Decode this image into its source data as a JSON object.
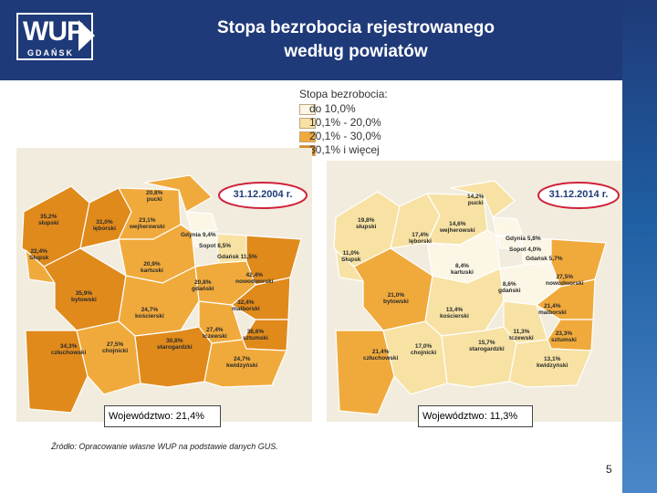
{
  "header": {
    "logo_text": "WUP",
    "logo_subtext": "GDAŃSK",
    "title_line1": "Stopa bezrobocia rejestrowanego",
    "title_line2": "według powiatów"
  },
  "legend": {
    "title": "Stopa bezrobocia:",
    "items": [
      {
        "label": "do 10,0%",
        "color": "#fbf6e6"
      },
      {
        "label": "10,1% - 20,0%",
        "color": "#f7e2a4"
      },
      {
        "label": "20,1% - 30,0%",
        "color": "#f0aa3c"
      },
      {
        "label": "30,1% i więcej",
        "color": "#e08a1c"
      }
    ]
  },
  "maps": [
    {
      "date": "31.12.2004 r.",
      "voivodeship_label": "Województwo: 21,4%",
      "regions": [
        {
          "name": "pucki",
          "value": "20,8%",
          "fill": "#f0aa3c"
        },
        {
          "name": "słupski",
          "value": "35,2%",
          "fill": "#e08a1c"
        },
        {
          "name": "lęborski",
          "value": "31,0%",
          "fill": "#e08a1c"
        },
        {
          "name": "wejherowski",
          "value": "23,1%",
          "fill": "#f0aa3c"
        },
        {
          "name": "Gdynia",
          "value": "9,4%",
          "fill": "#fbf6e6"
        },
        {
          "name": "Sopot",
          "value": "8,5%",
          "fill": "#fbf6e6"
        },
        {
          "name": "Słupsk",
          "value": "22,4%",
          "fill": "#f0aa3c"
        },
        {
          "name": "Gdańsk",
          "value": "11,5%",
          "fill": "#f7e2a4"
        },
        {
          "name": "kartuski",
          "value": "20,9%",
          "fill": "#f0aa3c"
        },
        {
          "name": "nowodworski",
          "value": "42,4%",
          "fill": "#e08a1c"
        },
        {
          "name": "bytowski",
          "value": "35,9%",
          "fill": "#e08a1c"
        },
        {
          "name": "gdański",
          "value": "20,8%",
          "fill": "#f0aa3c"
        },
        {
          "name": "malborski",
          "value": "32,4%",
          "fill": "#e08a1c"
        },
        {
          "name": "kościerski",
          "value": "24,7%",
          "fill": "#f0aa3c"
        },
        {
          "name": "tczewski",
          "value": "27,4%",
          "fill": "#f0aa3c"
        },
        {
          "name": "sztumski",
          "value": "38,6%",
          "fill": "#e08a1c"
        },
        {
          "name": "człuchowski",
          "value": "34,3%",
          "fill": "#e08a1c"
        },
        {
          "name": "chojnicki",
          "value": "27,5%",
          "fill": "#f0aa3c"
        },
        {
          "name": "starogardzki",
          "value": "30,8%",
          "fill": "#e08a1c"
        },
        {
          "name": "kwidzyński",
          "value": "24,7%",
          "fill": "#f0aa3c"
        }
      ]
    },
    {
      "date": "31.12.2014 r.",
      "voivodeship_label": "Województwo: 11,3%",
      "regions": [
        {
          "name": "pucki",
          "value": "14,2%",
          "fill": "#f7e2a4"
        },
        {
          "name": "słupski",
          "value": "19,8%",
          "fill": "#f7e2a4"
        },
        {
          "name": "wejherowski",
          "value": "14,6%",
          "fill": "#f7e2a4"
        },
        {
          "name": "lęborski",
          "value": "17,4%",
          "fill": "#f7e2a4"
        },
        {
          "name": "Gdynia",
          "value": "5,8%",
          "fill": "#fbf6e6"
        },
        {
          "name": "Sopot",
          "value": "4,0%",
          "fill": "#fbf6e6"
        },
        {
          "name": "Słupsk",
          "value": "11,0%",
          "fill": "#f7e2a4"
        },
        {
          "name": "Gdańsk",
          "value": "5,7%",
          "fill": "#fbf6e6"
        },
        {
          "name": "kartuski",
          "value": "8,4%",
          "fill": "#fbf6e6"
        },
        {
          "name": "nowodworski",
          "value": "27,5%",
          "fill": "#f0aa3c"
        },
        {
          "name": "gdański",
          "value": "8,6%",
          "fill": "#fbf6e6"
        },
        {
          "name": "bytowski",
          "value": "21,0%",
          "fill": "#f0aa3c"
        },
        {
          "name": "malborski",
          "value": "21,4%",
          "fill": "#f0aa3c"
        },
        {
          "name": "kościerski",
          "value": "13,4%",
          "fill": "#f7e2a4"
        },
        {
          "name": "tczewski",
          "value": "11,3%",
          "fill": "#f7e2a4"
        },
        {
          "name": "sztumski",
          "value": "23,3%",
          "fill": "#f0aa3c"
        },
        {
          "name": "człuchowski",
          "value": "21,4%",
          "fill": "#f0aa3c"
        },
        {
          "name": "chojnicki",
          "value": "17,0%",
          "fill": "#f7e2a4"
        },
        {
          "name": "starogardzki",
          "value": "15,7%",
          "fill": "#f7e2a4"
        },
        {
          "name": "kwidzyński",
          "value": "13,1%",
          "fill": "#f7e2a4"
        }
      ]
    }
  ],
  "footer": {
    "source": "Źródło: Opracowanie własne WUP na podstawie danych GUS.",
    "page_number": "5"
  },
  "colors": {
    "header_bg": "#1f3a78",
    "date_badge_border": "#d0223a"
  }
}
